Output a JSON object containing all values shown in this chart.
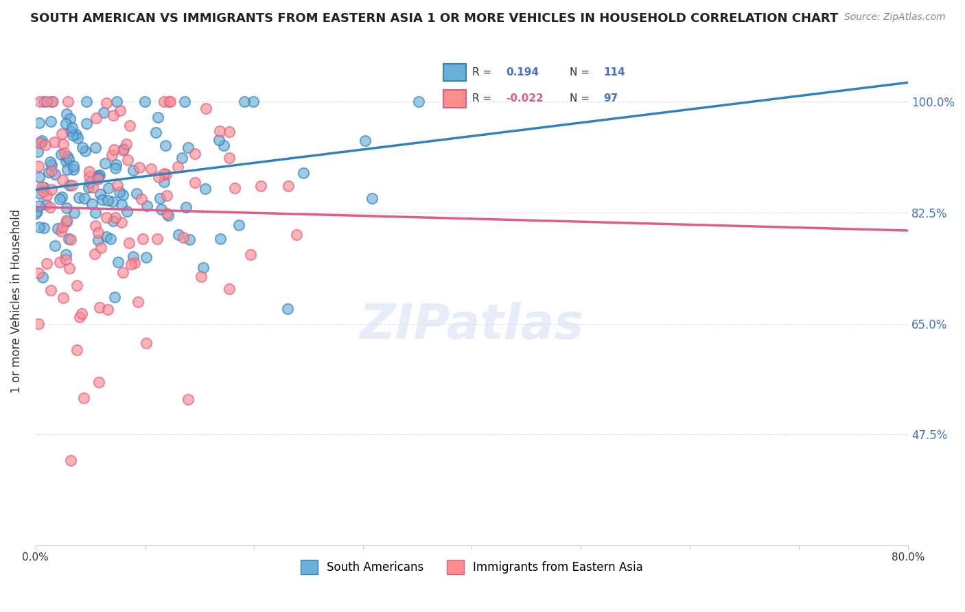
{
  "title": "SOUTH AMERICAN VS IMMIGRANTS FROM EASTERN ASIA 1 OR MORE VEHICLES IN HOUSEHOLD CORRELATION CHART",
  "source": "Source: ZipAtlas.com",
  "ylabel": "1 or more Vehicles in Household",
  "ytick_labels": [
    "100.0%",
    "82.5%",
    "65.0%",
    "47.5%"
  ],
  "ytick_values": [
    1.0,
    0.825,
    0.65,
    0.475
  ],
  "legend1_label": "South Americans",
  "legend2_label": "Immigrants from Eastern Asia",
  "r1": 0.194,
  "n1": 114,
  "r2": -0.022,
  "n2": 97,
  "color_blue": "#6baed6",
  "color_pink": "#fc8d8d",
  "line_blue": "#3182bd",
  "line_pink": "#e05c8a",
  "watermark": "ZIPatlas"
}
